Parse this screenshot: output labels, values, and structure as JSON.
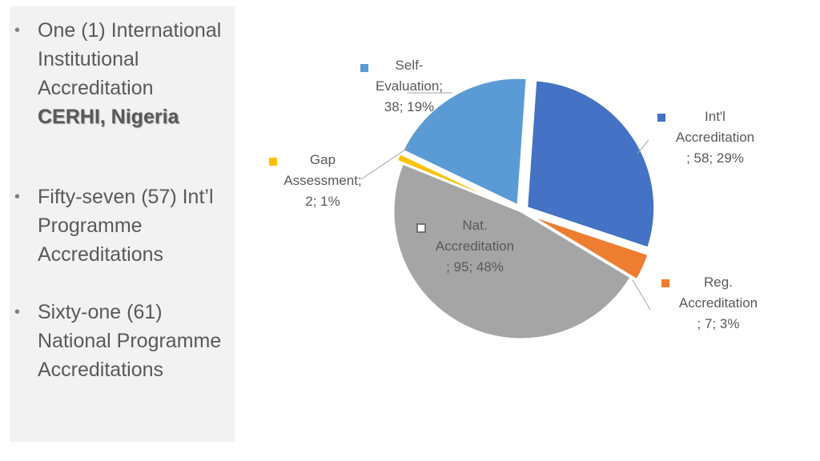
{
  "bullets": [
    {
      "text": "One (1) International Institutional Accreditation",
      "emphasis": "CERHI, Nigeria"
    },
    {
      "text": "Fifty-seven (57) Int’l Programme Accreditations",
      "emphasis": ""
    },
    {
      "text": "Sixty-one (61) National Programme Accreditations",
      "emphasis": ""
    }
  ],
  "chart_data": {
    "type": "pie",
    "title": "",
    "slices": [
      {
        "name": "Int'l Accreditation",
        "value": 58,
        "percent": "29%",
        "label_lines": [
          "Int'l",
          "Accreditation",
          "; 58; 29%"
        ],
        "color": "#4472c4"
      },
      {
        "name": "Reg. Accreditation",
        "value": 7,
        "percent": "3%",
        "label_lines": [
          "Reg.",
          "Accreditation",
          "; 7; 3%"
        ],
        "color": "#ed7d31"
      },
      {
        "name": "Nat. Accreditation",
        "value": 95,
        "percent": "48%",
        "label_lines": [
          "Nat.",
          "Accreditation",
          "; 95; 48%"
        ],
        "color": "#a5a5a5"
      },
      {
        "name": "Gap Assessment",
        "value": 2,
        "percent": "1%",
        "label_lines": [
          "Gap",
          "Assessment;",
          "2; 1%"
        ],
        "color": "#ffc000"
      },
      {
        "name": "Self-Evaluation",
        "value": 38,
        "percent": "19%",
        "label_lines": [
          "Self-",
          "Evaluation;",
          "38; 19%"
        ],
        "color": "#5b9bd5"
      }
    ]
  }
}
